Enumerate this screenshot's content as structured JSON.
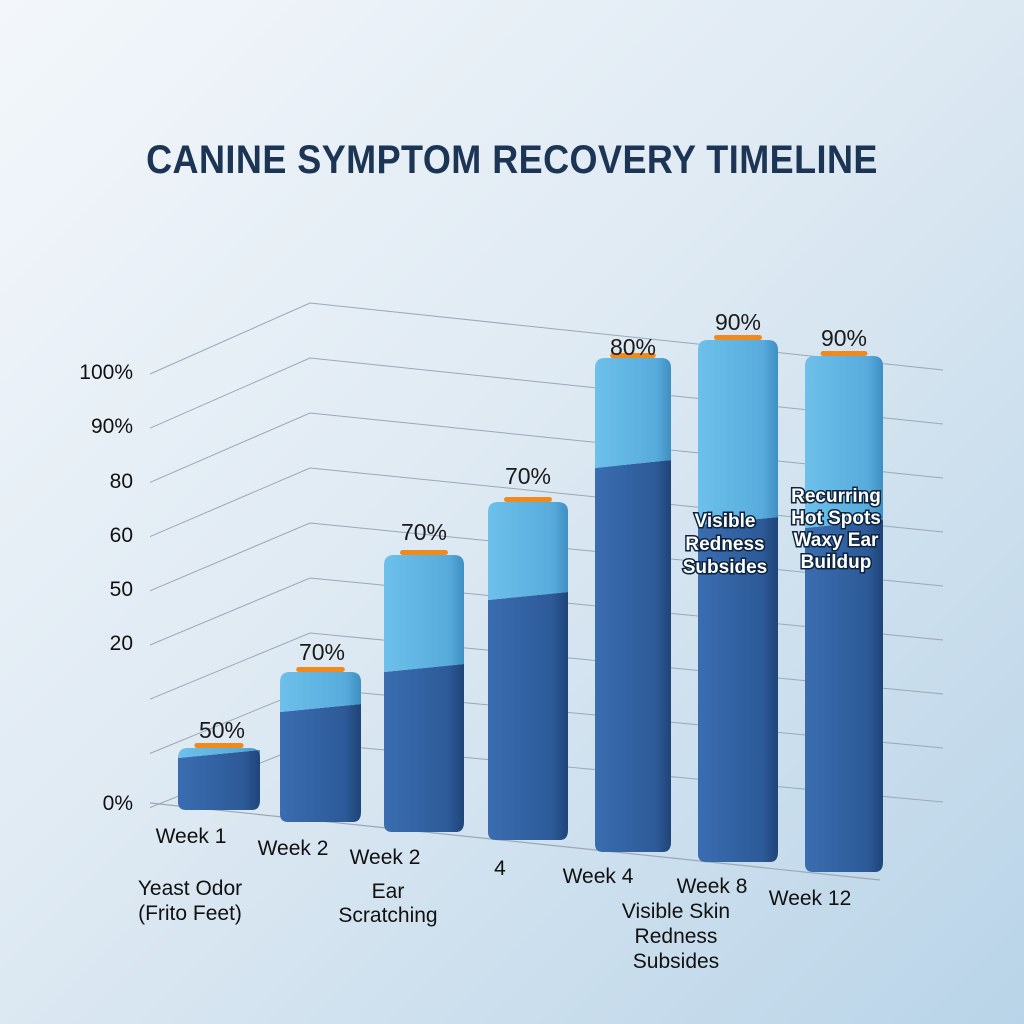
{
  "chart_data": {
    "type": "bar",
    "title": "CANINE SYMPTOM RECOVERY TIMELINE",
    "xlabel": "",
    "ylabel": "",
    "y_tick_labels": [
      "0%",
      "20",
      "50",
      "60",
      "80",
      "90%",
      "100%"
    ],
    "categories": [
      "Week 1",
      "Week 2",
      "Week 2",
      "4",
      "Week 4",
      "Week 8",
      "Week 12"
    ],
    "values": [
      50,
      70,
      70,
      70,
      80,
      90,
      90
    ],
    "value_labels": [
      "50%",
      "70%",
      "70%",
      "70%",
      "80%",
      "90%",
      "90%"
    ],
    "below_axis_annotations": [
      "Yeast Odor (Frito Feet)",
      "Ear Scratching",
      "Visible Skin Redness Subsides"
    ],
    "bar_annotations": [
      "Visible Redness Subsides",
      "Recurring Hot Spots Waxy Ear Buildup"
    ],
    "grid": true,
    "colors": {
      "bar_dark": "#2f5d9e",
      "bar_light": "#5fb2e0",
      "marker": "#f08a1c",
      "title": "#1c3554"
    }
  }
}
